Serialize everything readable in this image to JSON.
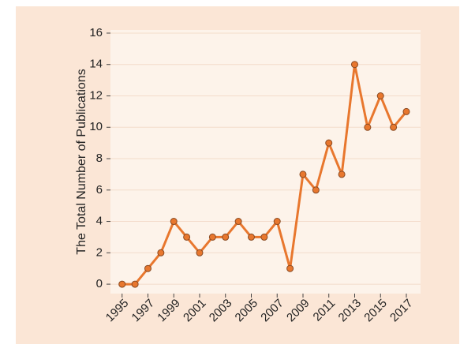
{
  "chart_data": {
    "type": "line",
    "y_label": "The Total Number of Publications",
    "x": [
      1995,
      1996,
      1997,
      1998,
      1999,
      2000,
      2001,
      2002,
      2003,
      2004,
      2005,
      2006,
      2007,
      2008,
      2009,
      2010,
      2011,
      2012,
      2013,
      2014,
      2015,
      2016,
      2017
    ],
    "series": [
      {
        "color": "#e8772e",
        "values": [
          0,
          0,
          1,
          2,
          4,
          3,
          2,
          3,
          3,
          4,
          3,
          3,
          4,
          1,
          7,
          6,
          9,
          7,
          14,
          10,
          12,
          10,
          11
        ]
      }
    ],
    "xlim": [
      1994.1,
      2018.1
    ],
    "xticks": [
      1995,
      1997,
      1999,
      2001,
      2003,
      2005,
      2007,
      2009,
      2011,
      2013,
      2015,
      2017
    ],
    "ylim": [
      -0.6,
      16.2
    ],
    "yticks": [
      0,
      2,
      4,
      6,
      8,
      10,
      12,
      14,
      16
    ],
    "grid": true
  }
}
